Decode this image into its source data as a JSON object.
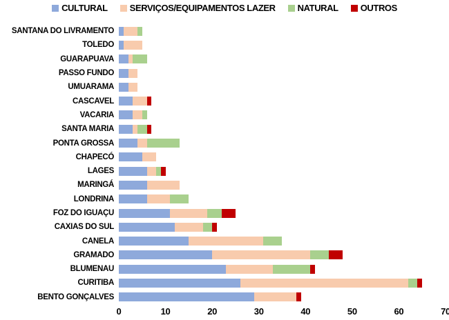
{
  "chart_data": {
    "type": "bar",
    "orientation": "horizontal",
    "stacked": true,
    "title": "",
    "xlabel": "",
    "ylabel": "",
    "legend_position": "top",
    "gridlines": false,
    "background": "#ffffff",
    "x_axis": {
      "min": 0,
      "max": 70,
      "ticks": [
        0,
        10,
        20,
        30,
        40,
        50,
        60,
        70
      ]
    },
    "series": [
      {
        "name": "CULTURAL",
        "color": "#8EA9DB"
      },
      {
        "name": "SERVIÇOS/EQUIPAMENTOS LAZER",
        "color": "#F8CBAD"
      },
      {
        "name": "NATURAL",
        "color": "#A9D08E"
      },
      {
        "name": "OUTROS",
        "color": "#C00000"
      }
    ],
    "categories": [
      "SANTANA DO LIVRAMENTO",
      "TOLEDO",
      "GUARAPUAVA",
      "PASSO FUNDO",
      "UMUARAMA",
      "CASCAVEL",
      "VACARIA",
      "SANTA MARIA",
      "PONTA GROSSA",
      "CHAPECÓ",
      "LAGES",
      "MARINGÁ",
      "LONDRINA",
      "FOZ DO IGUAÇU",
      "CAXIAS DO SUL",
      "CANELA",
      "GRAMADO",
      "BLUMENAU",
      "CURITIBA",
      "BENTO GONÇALVES"
    ],
    "values": [
      [
        1,
        3,
        1,
        0
      ],
      [
        1,
        4,
        0,
        0
      ],
      [
        2,
        1,
        3,
        0
      ],
      [
        2,
        2,
        0,
        0
      ],
      [
        2,
        2,
        0,
        0
      ],
      [
        3,
        3,
        0,
        1
      ],
      [
        3,
        2,
        1,
        0
      ],
      [
        3,
        1,
        2,
        1
      ],
      [
        4,
        2,
        7,
        0
      ],
      [
        5,
        3,
        0,
        0
      ],
      [
        6,
        2,
        1,
        1
      ],
      [
        6,
        7,
        0,
        0
      ],
      [
        6,
        5,
        4,
        0
      ],
      [
        11,
        8,
        3,
        3
      ],
      [
        12,
        6,
        2,
        1
      ],
      [
        15,
        16,
        4,
        0
      ],
      [
        20,
        21,
        4,
        3
      ],
      [
        23,
        10,
        8,
        1
      ],
      [
        26,
        36,
        2,
        1
      ],
      [
        29,
        9,
        0,
        1
      ]
    ]
  }
}
